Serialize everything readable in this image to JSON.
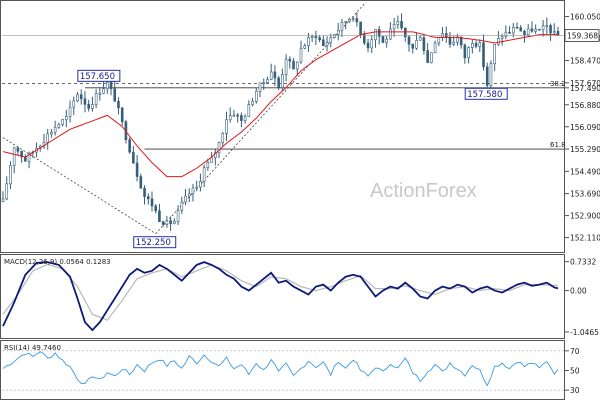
{
  "watermark": "ActionForex",
  "colors": {
    "candle": "#355f7a",
    "ma": "#e01818",
    "macd": "#0d1a7a",
    "signal": "#b8b8b8",
    "rsi": "#3a9be6",
    "trendline": "#444444",
    "level_box": "#2233aa",
    "current_price_bg": "#ffffff"
  },
  "chart_data": [
    {
      "type": "candlestick",
      "name": "price",
      "ylim": [
        151.7,
        160.5
      ],
      "y_ticks": [
        "160.050",
        "159.270",
        "158.470",
        "157.670",
        "157.490",
        "156.880",
        "156.090",
        "155.290",
        "154.490",
        "153.690",
        "152.900",
        "152.110"
      ],
      "y_tick_values": [
        160.05,
        159.27,
        158.47,
        157.67,
        157.49,
        156.88,
        156.09,
        155.29,
        154.49,
        153.69,
        152.9,
        152.11
      ],
      "current_price": "159.368",
      "current_price_value": 159.368,
      "bars": 150,
      "ma_period_label": "",
      "price_path": [
        [
          0,
          153.4
        ],
        [
          3,
          155.4
        ],
        [
          6,
          154.9
        ],
        [
          10,
          155.5
        ],
        [
          14,
          156.1
        ],
        [
          17,
          156.4
        ],
        [
          20,
          157.3
        ],
        [
          23,
          156.8
        ],
        [
          26,
          157.4
        ],
        [
          28,
          157.65
        ],
        [
          30,
          157.1
        ],
        [
          32,
          156.2
        ],
        [
          34,
          155.3
        ],
        [
          36,
          154.4
        ],
        [
          38,
          153.6
        ],
        [
          40,
          153.3
        ],
        [
          42,
          152.8
        ],
        [
          44,
          152.6
        ],
        [
          46,
          152.7
        ],
        [
          48,
          153.3
        ],
        [
          50,
          153.7
        ],
        [
          52,
          153.9
        ],
        [
          54,
          154.6
        ],
        [
          56,
          154.9
        ],
        [
          58,
          155.5
        ],
        [
          60,
          156.4
        ],
        [
          62,
          156.6
        ],
        [
          64,
          156.3
        ],
        [
          66,
          156.8
        ],
        [
          68,
          157.4
        ],
        [
          70,
          157.7
        ],
        [
          72,
          158.1
        ],
        [
          74,
          157.5
        ],
        [
          76,
          158.6
        ],
        [
          78,
          158.1
        ],
        [
          80,
          158.9
        ],
        [
          82,
          159.2
        ],
        [
          84,
          159.4
        ],
        [
          86,
          159.0
        ],
        [
          88,
          159.3
        ],
        [
          90,
          159.6
        ],
        [
          92,
          159.9
        ],
        [
          94,
          160.1
        ],
        [
          96,
          159.4
        ],
        [
          98,
          159.0
        ],
        [
          100,
          159.6
        ],
        [
          102,
          159.1
        ],
        [
          104,
          159.5
        ],
        [
          106,
          159.8
        ],
        [
          108,
          159.3
        ],
        [
          110,
          158.9
        ],
        [
          112,
          159.4
        ],
        [
          114,
          158.4
        ],
        [
          116,
          159.2
        ],
        [
          118,
          159.5
        ],
        [
          120,
          159.1
        ],
        [
          122,
          159.3
        ],
        [
          124,
          158.6
        ],
        [
          126,
          159.2
        ],
        [
          128,
          159.0
        ],
        [
          130,
          157.6
        ],
        [
          132,
          159.0
        ],
        [
          134,
          159.4
        ],
        [
          136,
          159.5
        ],
        [
          138,
          159.7
        ],
        [
          140,
          159.4
        ],
        [
          142,
          159.6
        ],
        [
          144,
          159.5
        ],
        [
          146,
          159.7
        ],
        [
          148,
          159.4
        ],
        [
          149,
          159.368
        ]
      ],
      "ma_path": [
        [
          0,
          155.2
        ],
        [
          6,
          155.0
        ],
        [
          12,
          155.5
        ],
        [
          18,
          156.0
        ],
        [
          24,
          156.3
        ],
        [
          28,
          156.5
        ],
        [
          32,
          156.1
        ],
        [
          36,
          155.4
        ],
        [
          40,
          154.8
        ],
        [
          44,
          154.3
        ],
        [
          48,
          154.3
        ],
        [
          52,
          154.6
        ],
        [
          56,
          155.0
        ],
        [
          60,
          155.5
        ],
        [
          64,
          155.9
        ],
        [
          68,
          156.4
        ],
        [
          72,
          157.0
        ],
        [
          76,
          157.5
        ],
        [
          80,
          158.1
        ],
        [
          84,
          158.5
        ],
        [
          88,
          158.8
        ],
        [
          92,
          159.1
        ],
        [
          96,
          159.4
        ],
        [
          100,
          159.5
        ],
        [
          104,
          159.5
        ],
        [
          110,
          159.5
        ],
        [
          116,
          159.3
        ],
        [
          122,
          159.3
        ],
        [
          128,
          159.2
        ],
        [
          132,
          159.1
        ],
        [
          136,
          159.2
        ],
        [
          140,
          159.3
        ],
        [
          144,
          159.4
        ],
        [
          149,
          159.4
        ]
      ],
      "levels": [
        {
          "label": "157.650",
          "value": 157.65,
          "bar": 26,
          "position": "above"
        },
        {
          "label": "152.250",
          "value": 152.25,
          "bar": 41,
          "position": "below"
        },
        {
          "label": "157.580",
          "value": 157.58,
          "bar": 130,
          "position": "below"
        }
      ],
      "fib_lines": [
        {
          "label": "38.2",
          "value": 157.49
        },
        {
          "label": "61.8",
          "value": 155.29
        }
      ],
      "dashed_levels": [
        {
          "value": 157.65
        }
      ],
      "trendlines": [
        {
          "from": [
            0,
            155.7
          ],
          "to": [
            41,
            152.25
          ]
        },
        {
          "from": [
            41,
            152.25
          ],
          "to": [
            97,
            160.5
          ]
        }
      ]
    },
    {
      "type": "line",
      "name": "MACD",
      "header": "MACD(12,26,9) 0.0564 0.1283",
      "ylim": [
        -1.15,
        0.85
      ],
      "y_ticks": [
        "0.7332",
        "0.00",
        "-1.0465"
      ],
      "y_tick_values": [
        0.7332,
        0,
        -1.0465
      ],
      "macd_path": [
        [
          0,
          -0.9
        ],
        [
          3,
          -0.3
        ],
        [
          6,
          0.4
        ],
        [
          9,
          0.7
        ],
        [
          12,
          0.72
        ],
        [
          15,
          0.65
        ],
        [
          18,
          0.35
        ],
        [
          20,
          -0.2
        ],
        [
          22,
          -0.8
        ],
        [
          24,
          -1.0
        ],
        [
          26,
          -0.8
        ],
        [
          28,
          -0.5
        ],
        [
          30,
          -0.2
        ],
        [
          32,
          0.1
        ],
        [
          34,
          0.4
        ],
        [
          36,
          0.55
        ],
        [
          38,
          0.45
        ],
        [
          40,
          0.5
        ],
        [
          42,
          0.65
        ],
        [
          44,
          0.55
        ],
        [
          46,
          0.4
        ],
        [
          48,
          0.25
        ],
        [
          50,
          0.45
        ],
        [
          52,
          0.65
        ],
        [
          54,
          0.72
        ],
        [
          56,
          0.65
        ],
        [
          58,
          0.55
        ],
        [
          60,
          0.4
        ],
        [
          62,
          0.3
        ],
        [
          64,
          0.1
        ],
        [
          66,
          0.0
        ],
        [
          68,
          0.15
        ],
        [
          70,
          0.3
        ],
        [
          72,
          0.45
        ],
        [
          74,
          0.2
        ],
        [
          76,
          0.25
        ],
        [
          78,
          0.1
        ],
        [
          80,
          0.0
        ],
        [
          82,
          -0.1
        ],
        [
          84,
          0.1
        ],
        [
          86,
          0.15
        ],
        [
          88,
          0.0
        ],
        [
          90,
          0.2
        ],
        [
          92,
          0.35
        ],
        [
          94,
          0.4
        ],
        [
          96,
          0.35
        ],
        [
          98,
          0.1
        ],
        [
          100,
          -0.15
        ],
        [
          102,
          0.0
        ],
        [
          104,
          0.1
        ],
        [
          106,
          0.05
        ],
        [
          108,
          0.2
        ],
        [
          110,
          0.05
        ],
        [
          112,
          -0.15
        ],
        [
          114,
          -0.2
        ],
        [
          116,
          0.0
        ],
        [
          118,
          0.1
        ],
        [
          120,
          0.05
        ],
        [
          122,
          0.15
        ],
        [
          124,
          0.1
        ],
        [
          126,
          -0.05
        ],
        [
          128,
          0.05
        ],
        [
          130,
          0.1
        ],
        [
          132,
          0.0
        ],
        [
          134,
          -0.05
        ],
        [
          136,
          0.05
        ],
        [
          138,
          0.15
        ],
        [
          140,
          0.2
        ],
        [
          142,
          0.12
        ],
        [
          144,
          0.15
        ],
        [
          146,
          0.2
        ],
        [
          148,
          0.08
        ],
        [
          149,
          0.0564
        ]
      ],
      "signal_path": [
        [
          0,
          -0.6
        ],
        [
          4,
          -0.1
        ],
        [
          8,
          0.5
        ],
        [
          12,
          0.66
        ],
        [
          16,
          0.55
        ],
        [
          20,
          0.1
        ],
        [
          24,
          -0.6
        ],
        [
          28,
          -0.75
        ],
        [
          32,
          -0.25
        ],
        [
          36,
          0.3
        ],
        [
          40,
          0.45
        ],
        [
          44,
          0.55
        ],
        [
          48,
          0.35
        ],
        [
          52,
          0.5
        ],
        [
          56,
          0.65
        ],
        [
          60,
          0.5
        ],
        [
          64,
          0.25
        ],
        [
          68,
          0.1
        ],
        [
          72,
          0.35
        ],
        [
          76,
          0.3
        ],
        [
          80,
          0.1
        ],
        [
          84,
          0.0
        ],
        [
          88,
          0.1
        ],
        [
          92,
          0.25
        ],
        [
          96,
          0.38
        ],
        [
          100,
          0.05
        ],
        [
          104,
          0.05
        ],
        [
          108,
          0.12
        ],
        [
          112,
          0.0
        ],
        [
          116,
          -0.1
        ],
        [
          120,
          0.05
        ],
        [
          124,
          0.1
        ],
        [
          128,
          0.0
        ],
        [
          132,
          0.05
        ],
        [
          136,
          0.0
        ],
        [
          140,
          0.15
        ],
        [
          144,
          0.15
        ],
        [
          149,
          0.1283
        ]
      ]
    },
    {
      "type": "line",
      "name": "RSI",
      "header": "RSI(14) 49.7460",
      "ylim": [
        22,
        78
      ],
      "y_ticks": [
        "70",
        "50",
        "30"
      ],
      "y_tick_values": [
        70,
        50,
        30
      ],
      "rsi_path": [
        [
          0,
          52
        ],
        [
          3,
          60
        ],
        [
          6,
          68
        ],
        [
          8,
          64
        ],
        [
          10,
          70
        ],
        [
          12,
          62
        ],
        [
          14,
          68
        ],
        [
          16,
          60
        ],
        [
          18,
          54
        ],
        [
          20,
          42
        ],
        [
          22,
          35
        ],
        [
          24,
          45
        ],
        [
          26,
          40
        ],
        [
          28,
          48
        ],
        [
          30,
          44
        ],
        [
          32,
          52
        ],
        [
          34,
          46
        ],
        [
          36,
          56
        ],
        [
          38,
          50
        ],
        [
          40,
          58
        ],
        [
          42,
          62
        ],
        [
          44,
          55
        ],
        [
          46,
          60
        ],
        [
          48,
          52
        ],
        [
          50,
          64
        ],
        [
          52,
          58
        ],
        [
          54,
          66
        ],
        [
          56,
          60
        ],
        [
          58,
          54
        ],
        [
          60,
          62
        ],
        [
          62,
          52
        ],
        [
          64,
          56
        ],
        [
          66,
          46
        ],
        [
          68,
          58
        ],
        [
          70,
          50
        ],
        [
          72,
          62
        ],
        [
          74,
          48
        ],
        [
          76,
          56
        ],
        [
          78,
          44
        ],
        [
          80,
          52
        ],
        [
          82,
          60
        ],
        [
          84,
          54
        ],
        [
          86,
          58
        ],
        [
          88,
          46
        ],
        [
          90,
          60
        ],
        [
          92,
          52
        ],
        [
          94,
          62
        ],
        [
          96,
          50
        ],
        [
          98,
          44
        ],
        [
          100,
          54
        ],
        [
          102,
          48
        ],
        [
          104,
          58
        ],
        [
          106,
          52
        ],
        [
          108,
          62
        ],
        [
          110,
          48
        ],
        [
          112,
          40
        ],
        [
          114,
          50
        ],
        [
          116,
          56
        ],
        [
          118,
          48
        ],
        [
          120,
          58
        ],
        [
          122,
          52
        ],
        [
          124,
          46
        ],
        [
          126,
          56
        ],
        [
          128,
          50
        ],
        [
          130,
          36
        ],
        [
          132,
          54
        ],
        [
          134,
          58
        ],
        [
          136,
          52
        ],
        [
          138,
          60
        ],
        [
          140,
          54
        ],
        [
          142,
          58
        ],
        [
          144,
          52
        ],
        [
          146,
          60
        ],
        [
          148,
          48
        ],
        [
          149,
          49.746
        ]
      ]
    }
  ]
}
